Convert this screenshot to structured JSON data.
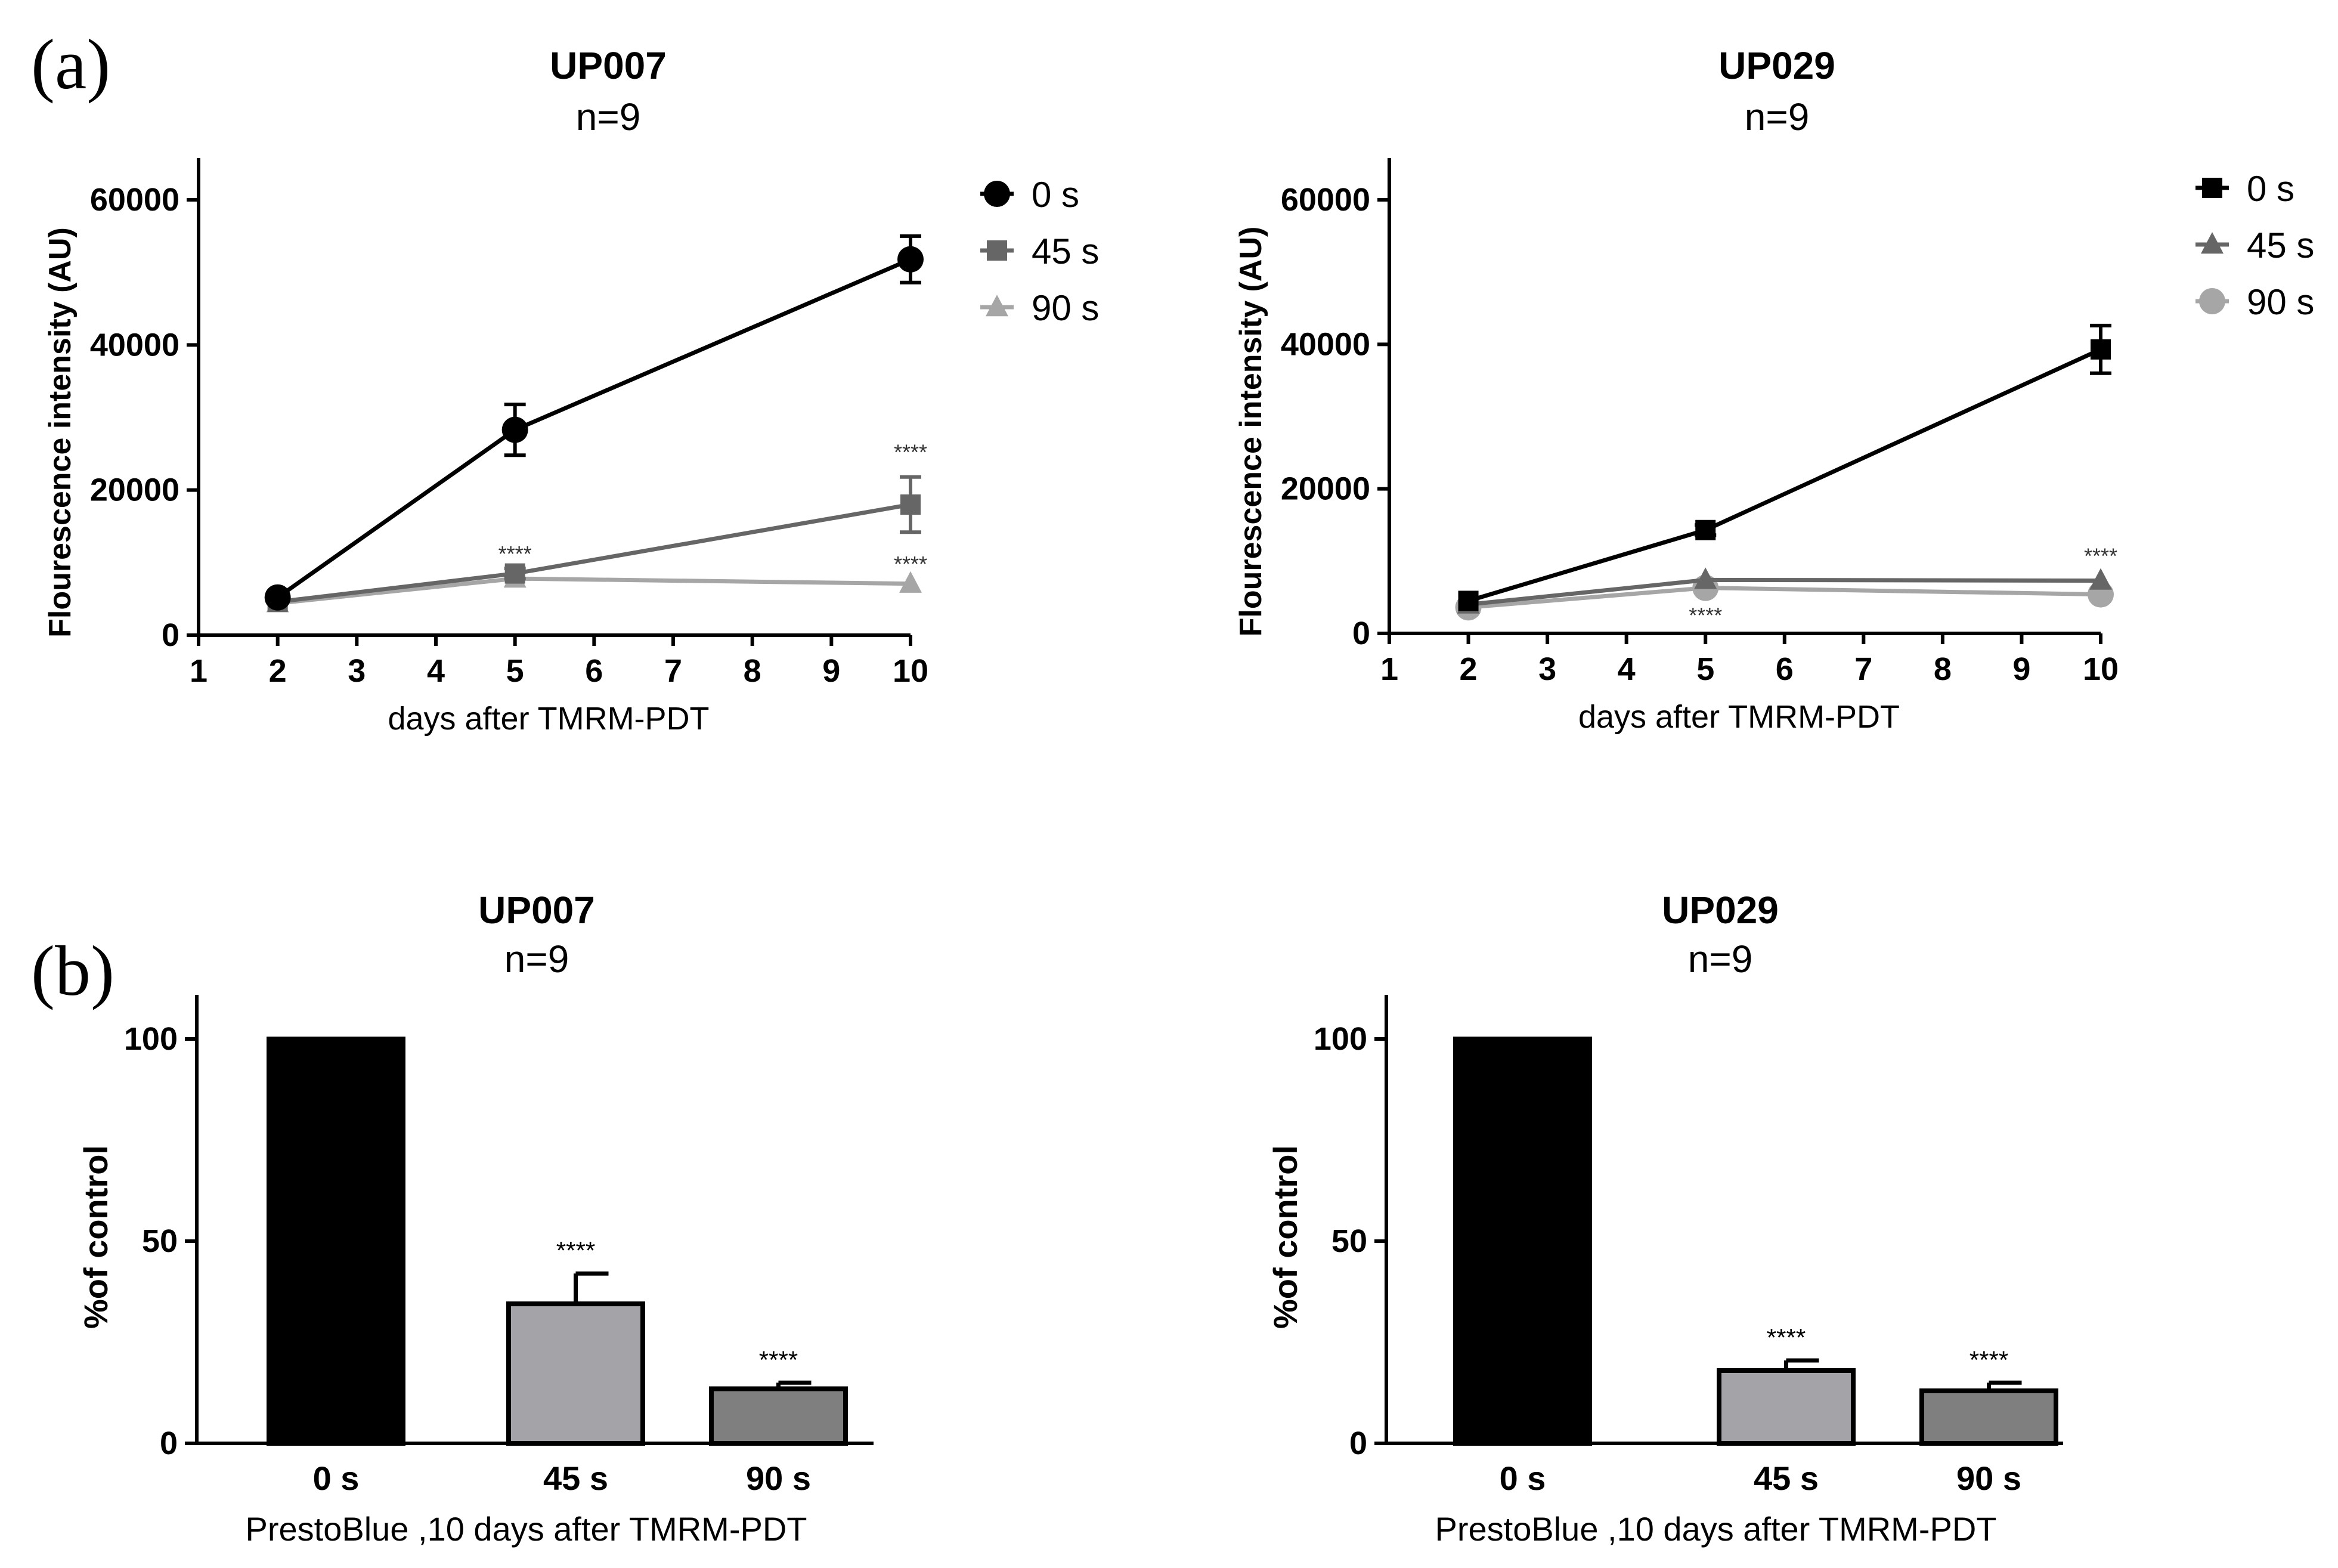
{
  "panel_labels": {
    "a": "(a)",
    "b": "(b)"
  },
  "chart_data": [
    {
      "id": "a1",
      "type": "line",
      "title": "UP007",
      "subtitle": "n=9",
      "xlabel": "days after TMRM-PDT",
      "ylabel": "Flourescence intensity (AU)",
      "xlim": [
        1,
        10
      ],
      "ylim": [
        0,
        65000
      ],
      "xticks": [
        1,
        2,
        3,
        4,
        5,
        6,
        7,
        8,
        9,
        10
      ],
      "yticks": [
        0,
        20000,
        40000,
        60000
      ],
      "x": [
        2,
        5,
        10
      ],
      "legend_position": "top-right",
      "series": [
        {
          "name": "0 s",
          "marker": "circle",
          "color": "#000000",
          "values": [
            5200,
            28300,
            51800
          ],
          "errors": [
            500,
            3500,
            3200
          ]
        },
        {
          "name": "45 s",
          "marker": "square",
          "color": "#666666",
          "values": [
            4600,
            8500,
            18000
          ],
          "errors": [
            400,
            700,
            3800
          ]
        },
        {
          "name": "90 s",
          "marker": "triangle",
          "color": "#a6a6a6",
          "values": [
            4400,
            7800,
            7100
          ],
          "errors": [
            300,
            500,
            400
          ]
        }
      ],
      "annotations": [
        {
          "text": "****",
          "x": 5,
          "y": 10200
        },
        {
          "text": "****",
          "x": 10,
          "y": 24200
        },
        {
          "text": "****",
          "x": 10,
          "y": 8800
        }
      ]
    },
    {
      "id": "a2",
      "type": "line",
      "title": "UP029",
      "subtitle": "n=9",
      "xlabel": "days after TMRM-PDT",
      "ylabel": "Flourescence intensity (AU)",
      "xlim": [
        1,
        10
      ],
      "ylim": [
        0,
        65000
      ],
      "xticks": [
        1,
        2,
        3,
        4,
        5,
        6,
        7,
        8,
        9,
        10
      ],
      "yticks": [
        0,
        20000,
        40000,
        60000
      ],
      "x": [
        2,
        5,
        10
      ],
      "legend_position": "top-right",
      "series": [
        {
          "name": "0 s",
          "marker": "square",
          "color": "#000000",
          "values": [
            4500,
            14300,
            39300
          ],
          "errors": [
            400,
            700,
            3300
          ]
        },
        {
          "name": "45 s",
          "marker": "triangle",
          "color": "#666666",
          "values": [
            4000,
            7400,
            7300
          ],
          "errors": [
            300,
            400,
            300
          ]
        },
        {
          "name": "90 s",
          "marker": "circle",
          "color": "#a6a6a6",
          "values": [
            3600,
            6300,
            5400
          ],
          "errors": [
            300,
            400,
            300
          ]
        }
      ],
      "annotations": [
        {
          "text": "****",
          "x": 5,
          "y": 1500
        },
        {
          "text": "****",
          "x": 10,
          "y": 9700
        }
      ]
    },
    {
      "id": "b1",
      "type": "bar",
      "title": "UP007",
      "subtitle": "n=9",
      "xlabel": "PrestoBlue ,10 days after TMRM-PDT",
      "ylabel": "%of control",
      "ylim": [
        0,
        110
      ],
      "yticks": [
        0,
        50,
        100
      ],
      "categories": [
        "0 s",
        "45 s",
        "90 s"
      ],
      "values": [
        100,
        34.5,
        13.5
      ],
      "errors": [
        0,
        7.5,
        1.5
      ],
      "colors": [
        "#000000",
        "#a3a3a8",
        "#7f7f7f"
      ],
      "annotations": [
        "",
        "****",
        "****"
      ]
    },
    {
      "id": "b2",
      "type": "bar",
      "title": "UP029",
      "subtitle": "n=9",
      "xlabel": "PrestoBlue ,10 days after TMRM-PDT",
      "ylabel": "%of control",
      "ylim": [
        0,
        110
      ],
      "yticks": [
        0,
        50,
        100
      ],
      "categories": [
        "0 s",
        "45 s",
        "90 s"
      ],
      "values": [
        100,
        18,
        13
      ],
      "errors": [
        0,
        2.5,
        2
      ],
      "colors": [
        "#000000",
        "#a3a3a8",
        "#7f7f7f"
      ],
      "annotations": [
        "",
        "****",
        "****"
      ]
    }
  ]
}
